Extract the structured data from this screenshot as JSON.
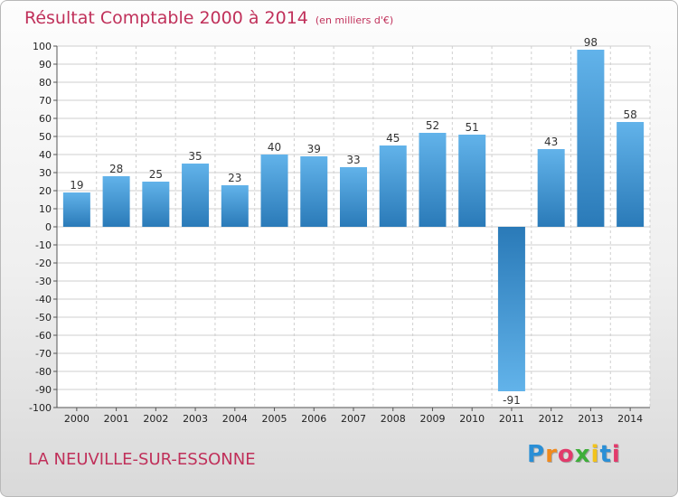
{
  "header": {
    "title": "Résultat Comptable 2000 à 2014",
    "subtitle": "(en milliers d'€)"
  },
  "footer": {
    "commune": "LA NEUVILLE-SUR-ESSONNE",
    "logo_letters": [
      "P",
      "r",
      "o",
      "x",
      "i",
      "t",
      "i"
    ],
    "logo_colors": [
      "#2a8fd6",
      "#f08a1c",
      "#e23a6b",
      "#3fae3a",
      "#f2c31b",
      "#2a8fd6",
      "#e23a6b"
    ]
  },
  "colors": {
    "title": "#c0305a",
    "bar_dark": "#2a7ab8",
    "bar_light": "#62b3ea",
    "grid": "#cfcfcf"
  },
  "chart_data": {
    "type": "bar",
    "categories": [
      "2000",
      "2001",
      "2002",
      "2003",
      "2004",
      "2005",
      "2006",
      "2007",
      "2008",
      "2009",
      "2010",
      "2011",
      "2012",
      "2013",
      "2014"
    ],
    "values": [
      19,
      28,
      25,
      35,
      23,
      40,
      39,
      33,
      45,
      52,
      51,
      -91,
      43,
      98,
      58
    ],
    "ylim": [
      -100,
      100
    ],
    "yticks": [
      100,
      90,
      80,
      70,
      60,
      50,
      40,
      30,
      20,
      10,
      0,
      -10,
      -20,
      -30,
      -40,
      -50,
      -60,
      -70,
      -80,
      -90,
      -100
    ],
    "grid": true,
    "title": "Résultat Comptable 2000 à 2014",
    "xlabel": "",
    "ylabel": ""
  }
}
